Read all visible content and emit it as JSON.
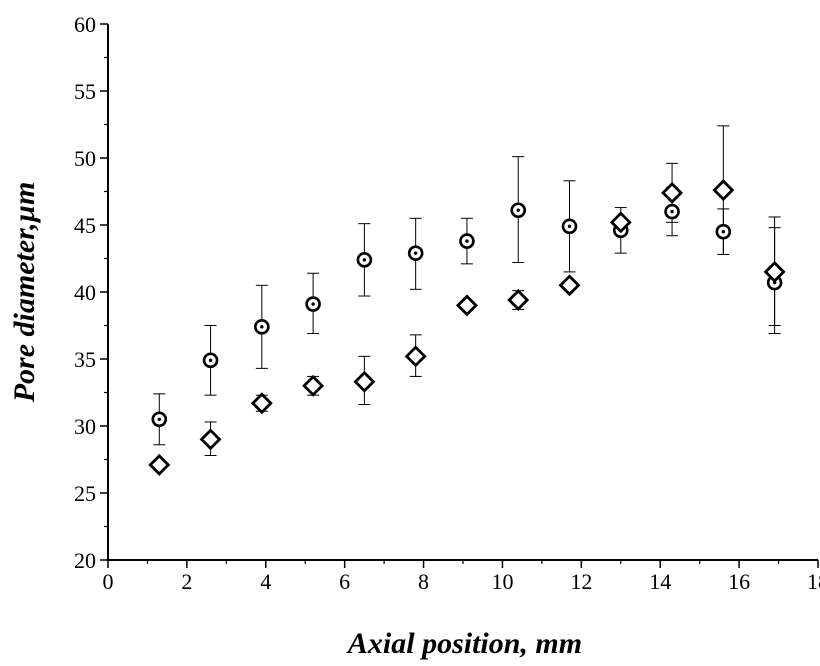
{
  "chart_data": {
    "type": "scatter",
    "xlabel": "Axial position, mm",
    "ylabel": "Pore diameter,µm",
    "xlim": [
      0,
      18
    ],
    "ylim": [
      20,
      60
    ],
    "xticks": [
      "0",
      "2",
      "4",
      "6",
      "8",
      "10",
      "12",
      "14",
      "16",
      "18"
    ],
    "yticks": [
      "20",
      "25",
      "30",
      "35",
      "40",
      "45",
      "50",
      "55",
      "60"
    ],
    "grid": false,
    "legend": "none",
    "series": [
      {
        "marker": "circle-dot",
        "color": "#000000",
        "x": [
          1.3,
          2.6,
          3.9,
          5.2,
          6.5,
          7.8,
          9.1,
          10.4,
          11.7,
          13.0,
          14.3,
          15.6,
          16.9
        ],
        "y": [
          30.5,
          34.9,
          37.4,
          39.1,
          42.4,
          42.9,
          43.8,
          46.1,
          44.9,
          44.6,
          46.0,
          44.5,
          40.7
        ],
        "err_low": [
          28.6,
          32.3,
          34.3,
          36.9,
          39.7,
          40.2,
          42.1,
          42.2,
          41.5,
          42.9,
          44.2,
          42.8,
          36.9
        ],
        "err_high": [
          32.4,
          37.5,
          40.5,
          41.4,
          45.1,
          45.5,
          45.5,
          50.1,
          48.3,
          46.3,
          47.8,
          46.2,
          44.8
        ]
      },
      {
        "marker": "diamond",
        "color": "#000000",
        "x": [
          1.3,
          2.6,
          3.9,
          5.2,
          6.5,
          7.8,
          9.1,
          10.4,
          11.7,
          13.0,
          14.3,
          15.6,
          16.9
        ],
        "y": [
          27.1,
          29.0,
          31.7,
          33.0,
          33.3,
          35.2,
          39.0,
          39.4,
          40.5,
          45.2,
          47.4,
          47.6,
          41.5
        ],
        "err_low": [
          27.1,
          27.8,
          31.1,
          32.3,
          31.6,
          33.7,
          39.0,
          38.7,
          40.2,
          45.0,
          45.2,
          42.8,
          37.5
        ],
        "err_high": [
          27.1,
          30.3,
          32.3,
          33.7,
          35.2,
          36.8,
          39.0,
          40.1,
          40.8,
          45.5,
          49.6,
          52.4,
          45.6
        ]
      }
    ]
  }
}
